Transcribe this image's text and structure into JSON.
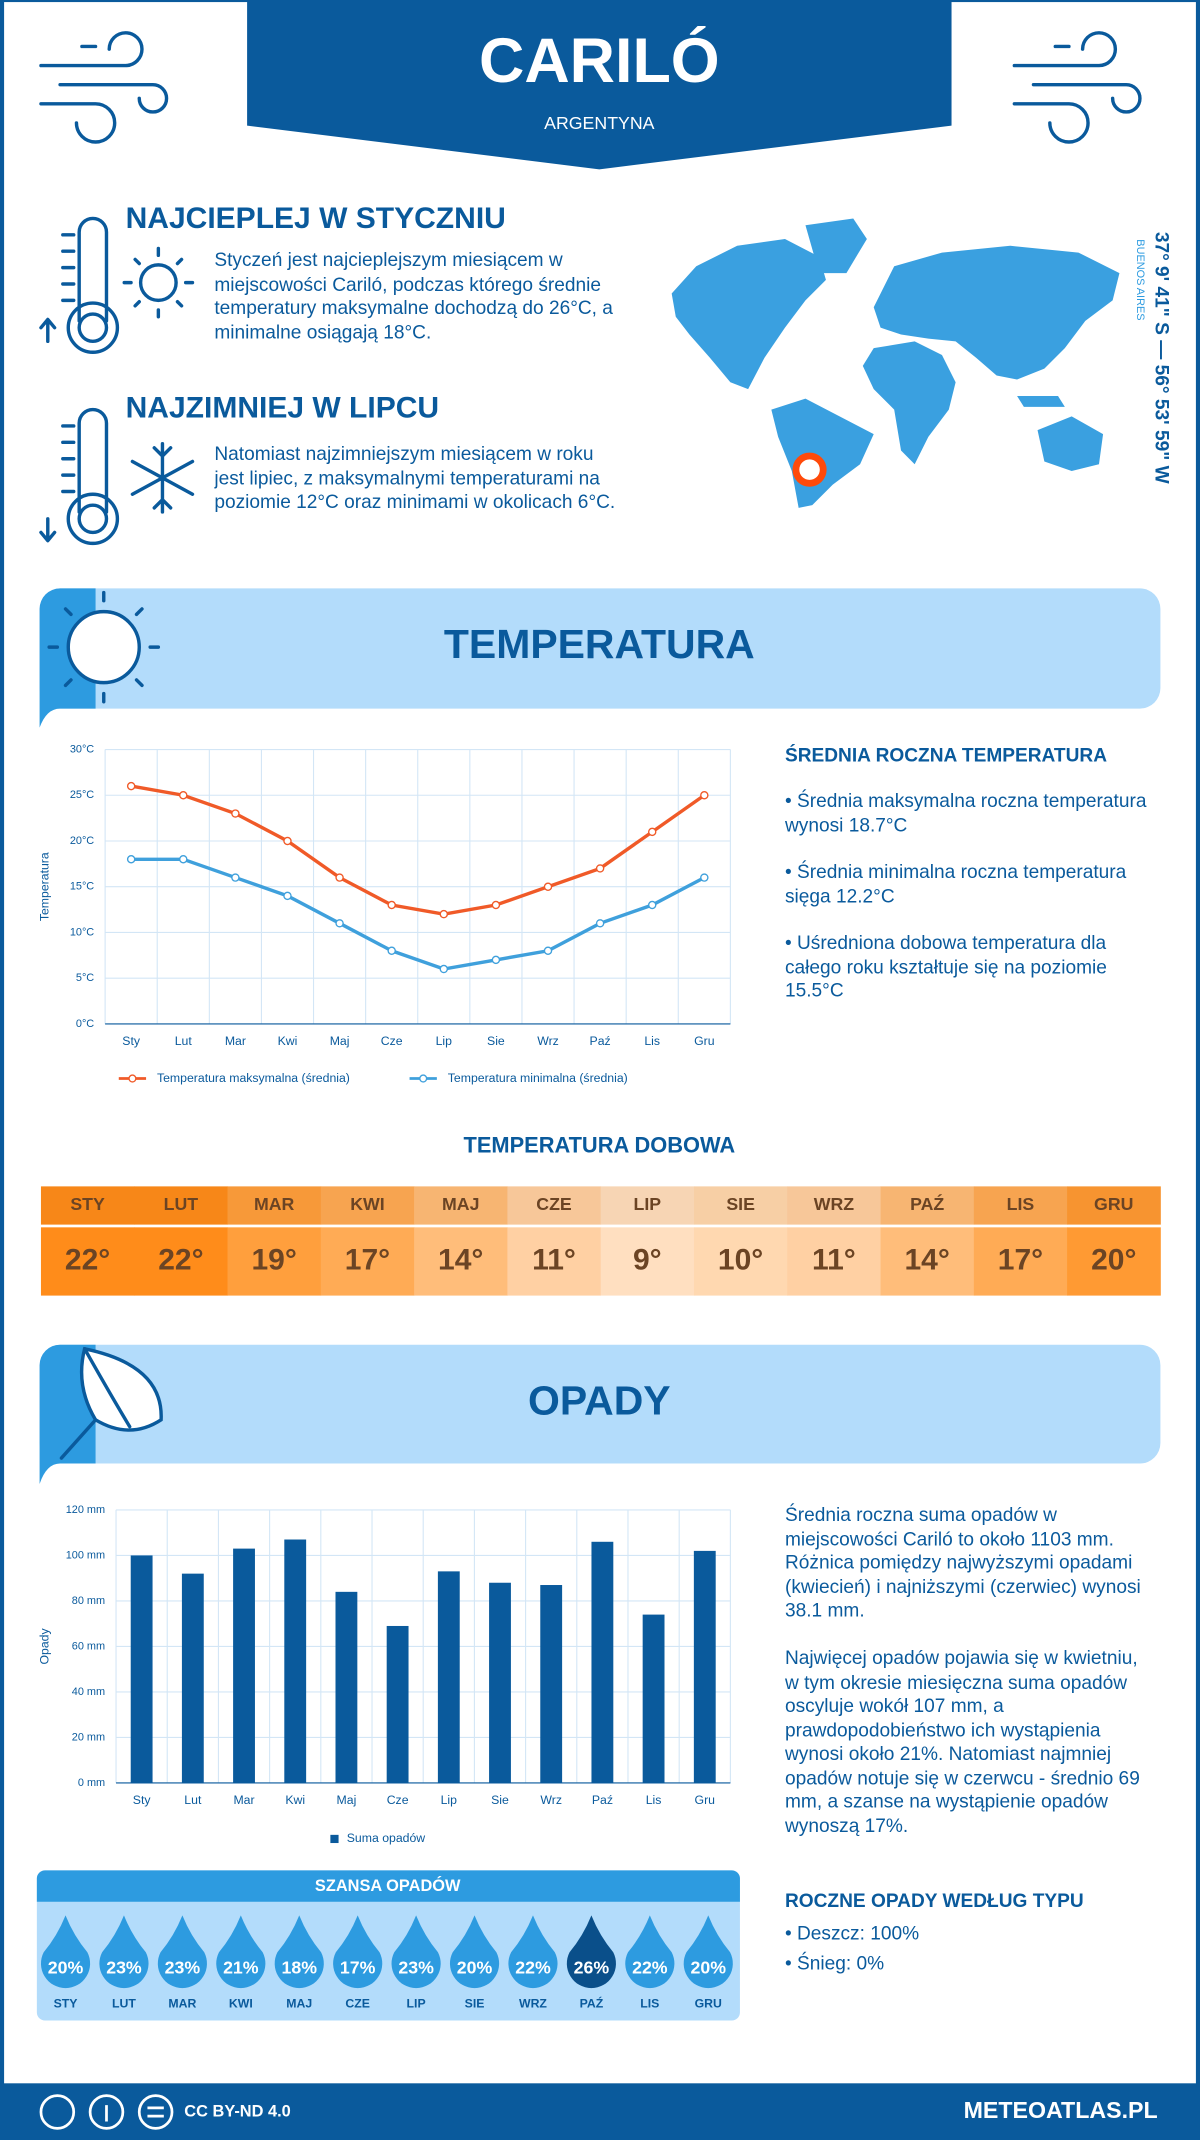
{
  "header": {
    "title": "CARILÓ",
    "subtitle": "ARGENTYNA"
  },
  "highlights": [
    {
      "title": "NAJCIEPLEJ W STYCZNIU",
      "text": "Styczeń jest najcieplejszym miesiącem w miejscowości Cariló, podczas którego średnie temperatury maksymalne dochodzą do 26°C, a minimalne osiągają 18°C."
    },
    {
      "title": "NAJZIMNIEJ W LIPCU",
      "text": "Natomiast najzimniejszym miesiącem w roku jest lipiec, z maksymalnymi temperaturami na poziomie 12°C oraz minimami w okolicach 6°C."
    }
  ],
  "location": {
    "coordinates": "37° 9' 41\" S — 56° 53' 59\" W",
    "region": "BUENOS AIRES"
  },
  "sections": {
    "temperature": "TEMPERATURA",
    "precipitation": "OPADY"
  },
  "chart_data": [
    {
      "type": "line",
      "y_label": "Temperatura",
      "categories": [
        "Sty",
        "Lut",
        "Mar",
        "Kwi",
        "Maj",
        "Cze",
        "Lip",
        "Sie",
        "Wrz",
        "Paź",
        "Lis",
        "Gru"
      ],
      "series": [
        {
          "name": "Temperatura maksymalna (średnia)",
          "color": "#f05a28",
          "values": [
            26,
            25,
            23,
            20,
            16,
            13,
            12,
            13,
            15,
            17,
            21,
            25
          ]
        },
        {
          "name": "Temperatura minimalna (średnia)",
          "color": "#3fa0dc",
          "values": [
            18,
            18,
            16,
            14,
            11,
            8,
            6,
            7,
            8,
            11,
            13,
            16
          ]
        }
      ],
      "ylim": [
        0,
        30
      ],
      "yticks": [
        {
          "value": 0,
          "label": "0°C"
        },
        {
          "value": 5,
          "label": "5°C"
        },
        {
          "value": 10,
          "label": "10°C"
        },
        {
          "value": 15,
          "label": "15°C"
        },
        {
          "value": 20,
          "label": "20°C"
        },
        {
          "value": 25,
          "label": "25°C"
        },
        {
          "value": 30,
          "label": "30°C"
        }
      ],
      "grid": true
    },
    {
      "type": "bar",
      "y_label": "Opady",
      "categories": [
        "Sty",
        "Lut",
        "Mar",
        "Kwi",
        "Maj",
        "Cze",
        "Lip",
        "Sie",
        "Wrz",
        "Paź",
        "Lis",
        "Gru"
      ],
      "series": [
        {
          "name": "Suma opadów",
          "color": "#0a5a9c",
          "values": [
            100,
            92,
            103,
            107,
            84,
            69,
            93,
            88,
            87,
            106,
            74,
            102
          ]
        }
      ],
      "ylim": [
        0,
        120
      ],
      "yticks": [
        {
          "value": 0,
          "label": "0 mm"
        },
        {
          "value": 20,
          "label": "20 mm"
        },
        {
          "value": 40,
          "label": "40 mm"
        },
        {
          "value": 60,
          "label": "60 mm"
        },
        {
          "value": 80,
          "label": "80 mm"
        },
        {
          "value": 100,
          "label": "100 mm"
        },
        {
          "value": 120,
          "label": "120 mm"
        }
      ],
      "grid": true
    }
  ],
  "temperature_stats": {
    "title": "ŚREDNIA ROCZNA TEMPERATURA",
    "items": [
      "• Średnia maksymalna roczna temperatura wynosi 18.7°C",
      "• Średnia minimalna roczna temperatura sięga 12.2°C",
      "• Uśredniona dobowa temperatura dla całego roku kształtuje się na poziomie 15.5°C"
    ]
  },
  "daily_temperature": {
    "title": "TEMPERATURA DOBOWA",
    "months": [
      "STY",
      "LUT",
      "MAR",
      "KWI",
      "MAJ",
      "CZE",
      "LIP",
      "SIE",
      "WRZ",
      "PAŹ",
      "LIS",
      "GRU"
    ],
    "values": [
      "22°",
      "22°",
      "19°",
      "17°",
      "14°",
      "11°",
      "9°",
      "10°",
      "11°",
      "14°",
      "17°",
      "20°"
    ],
    "colors": [
      "#ff8c1a",
      "#ff8c1a",
      "#ff9f3d",
      "#ffab55",
      "#ffbd7a",
      "#ffd0a3",
      "#ffdfc0",
      "#ffd8b0",
      "#ffd0a3",
      "#ffbd7a",
      "#ffab55",
      "#ff9a33"
    ]
  },
  "precipitation_text": [
    "Średnia roczna suma opadów w miejscowości Cariló to około 1103 mm. Różnica pomiędzy najwyższymi opadami (kwiecień) i najniższymi (czerwiec) wynosi 38.1 mm.",
    "Najwięcej opadów pojawia się w kwietniu, w tym okresie miesięczna suma opadów oscyluje wokół 107 mm, a prawdopodobieństwo ich wystąpienia wynosi około 21%. Natomiast najmniej opadów notuje się w czerwcu - średnio 69 mm, a szanse na wystąpienie opadów wynoszą 17%."
  ],
  "precipitation_chance": {
    "title": "SZANSA OPADÓW",
    "months": [
      "STY",
      "LUT",
      "MAR",
      "KWI",
      "MAJ",
      "CZE",
      "LIP",
      "SIE",
      "WRZ",
      "PAŹ",
      "LIS",
      "GRU"
    ],
    "values": [
      "20%",
      "23%",
      "23%",
      "21%",
      "18%",
      "17%",
      "23%",
      "20%",
      "22%",
      "26%",
      "22%",
      "20%"
    ],
    "colors": [
      "#2d9be0",
      "#2d9be0",
      "#2d9be0",
      "#2d9be0",
      "#2d9be0",
      "#2d9be0",
      "#2d9be0",
      "#2d9be0",
      "#2d9be0",
      "#0a4f8a",
      "#2d9be0",
      "#2d9be0"
    ]
  },
  "precipitation_types": {
    "title": "ROCZNE OPADY WEDŁUG TYPU",
    "items": [
      "• Deszcz: 100%",
      "• Śnieg: 0%"
    ]
  },
  "footer": {
    "license": "CC BY-ND 4.0",
    "site": "METEOATLAS.PL"
  }
}
